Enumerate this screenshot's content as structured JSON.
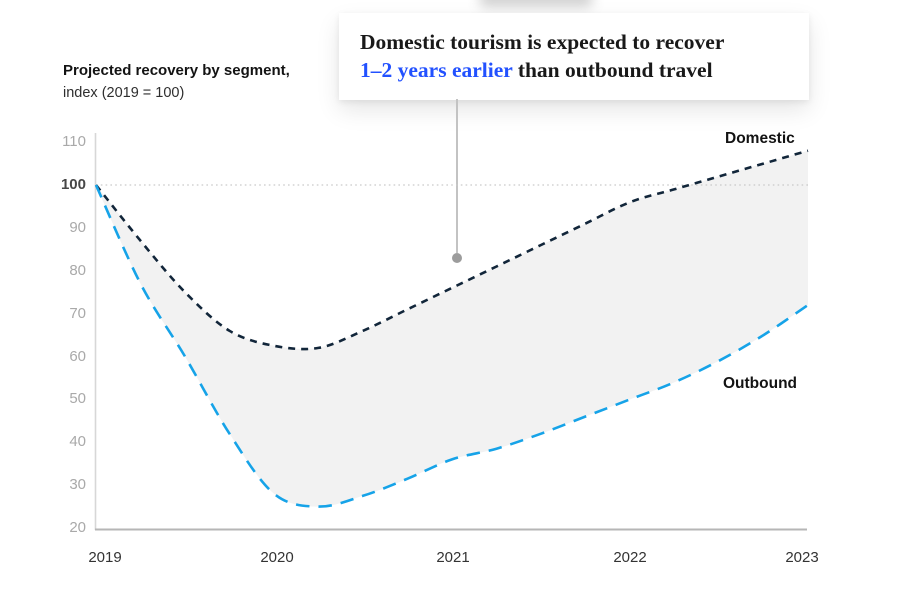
{
  "header": {
    "title": "Projected recovery by segment,",
    "subtitle": "index (2019 = 100)"
  },
  "callout": {
    "line1": "Domestic tourism is expected to recover",
    "line2_highlight": "1–2 years earlier",
    "line2_rest": " than outbound travel",
    "highlight_color": "#2251ff"
  },
  "chart_data": {
    "type": "line",
    "title": "Projected recovery by segment, index (2019 = 100)",
    "xlabel": "",
    "ylabel": "index (2019 = 100)",
    "x": [
      2019,
      2019.25,
      2019.5,
      2019.75,
      2020,
      2020.25,
      2020.5,
      2020.75,
      2021,
      2021.25,
      2021.5,
      2021.75,
      2022,
      2022.25,
      2022.5,
      2022.75,
      2023
    ],
    "series": [
      {
        "name": "Domestic",
        "color": "#12263a",
        "dash_style": "short-dash",
        "values": [
          100,
          87,
          75,
          66,
          62.5,
          62,
          66,
          71,
          76,
          81,
          86,
          91,
          96,
          99,
          102,
          105,
          108
        ]
      },
      {
        "name": "Outbound",
        "color": "#16a3e8",
        "dash_style": "long-dash",
        "values": [
          100,
          77,
          60,
          42,
          28,
          25,
          27.5,
          31.5,
          36,
          38.5,
          42,
          46,
          50,
          54,
          59,
          65,
          72
        ]
      }
    ],
    "fill_between": {
      "enabled": true,
      "color": "#f2f2f2"
    },
    "baseline": {
      "value": 100,
      "style": "dotted",
      "color": "#c9c9c9"
    },
    "yticks": [
      110,
      100,
      90,
      80,
      70,
      60,
      50,
      40,
      30,
      20
    ],
    "xticks": [
      2019,
      2020,
      2021,
      2022,
      2023
    ],
    "ylim": [
      20,
      110
    ],
    "xlim": [
      2019,
      2023
    ],
    "grid": "none",
    "legend_position": "inline-end-labels",
    "axis_colors": {
      "y_axis_line": "#d7d7d7",
      "x_axis_line": "#b6b6b6"
    }
  }
}
